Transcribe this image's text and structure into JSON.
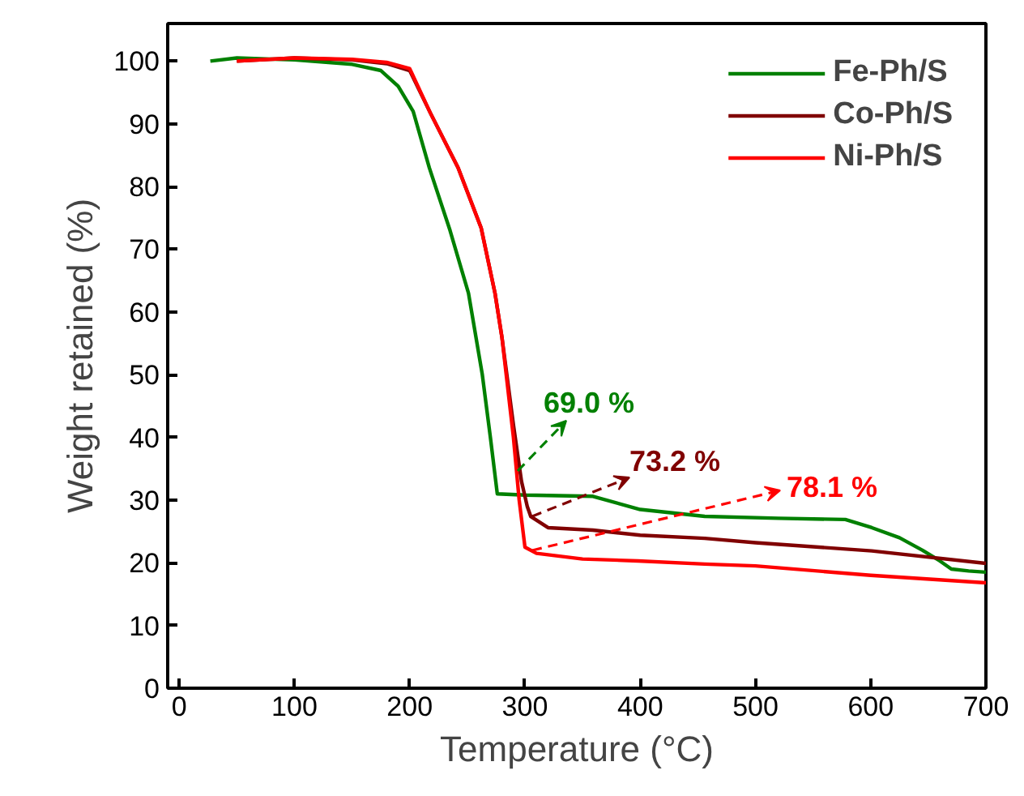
{
  "chart_data": {
    "type": "line",
    "xlabel": "Temperature (°C)",
    "ylabel": "Weight retained (%)",
    "xlim": [
      -10,
      700
    ],
    "ylim": [
      0,
      106
    ],
    "xticks": [
      0,
      100,
      200,
      300,
      400,
      500,
      600,
      700
    ],
    "yticks": [
      0,
      10,
      20,
      30,
      40,
      50,
      60,
      70,
      80,
      90,
      100
    ],
    "grid": false,
    "legend": "top right",
    "line_style": "solid",
    "series": [
      {
        "name": "Fe-Ph/S",
        "color": "#008000",
        "x": [
          27,
          50,
          100,
          150,
          175,
          190,
          203,
          217,
          235,
          251,
          263,
          270,
          276,
          300,
          359,
          400,
          456,
          520,
          578,
          601,
          625,
          645,
          660,
          670,
          685,
          700
        ],
        "values": [
          100,
          100.5,
          100.2,
          99.5,
          98.5,
          96,
          92,
          83,
          73,
          63,
          50,
          40,
          31,
          30.8,
          30.6,
          28.5,
          27.4,
          27.1,
          26.9,
          25.6,
          24,
          22,
          20.3,
          19,
          18.7,
          18.5
        ]
      },
      {
        "name": "Co-Ph/S",
        "color": "#800000",
        "x": [
          50,
          100,
          150,
          180,
          200,
          218,
          242,
          262,
          274,
          280,
          290,
          297,
          302,
          305,
          320,
          359,
          400,
          456,
          500,
          601,
          700
        ],
        "values": [
          100,
          100.5,
          100.2,
          99.6,
          98.5,
          91.7,
          83,
          73.4,
          63,
          56,
          42,
          33,
          29,
          27.4,
          25.6,
          25.2,
          24.4,
          23.9,
          23.2,
          21.9,
          19.9
        ]
      },
      {
        "name": "Ni-Ph/S",
        "color": "#ff0000",
        "x": [
          50,
          100,
          150,
          180,
          200,
          218,
          242,
          262,
          274,
          280,
          290,
          295,
          300,
          310,
          350,
          398,
          456,
          500,
          600,
          700
        ],
        "values": [
          100,
          100.5,
          100.3,
          99.8,
          98.8,
          91.7,
          83,
          73.4,
          63,
          56,
          40,
          30,
          22.5,
          21.5,
          20.6,
          20.3,
          19.8,
          19.5,
          18,
          16.8
        ]
      }
    ],
    "annotations": [
      "69.0 %",
      "73.2 %",
      "78.1 %"
    ]
  }
}
